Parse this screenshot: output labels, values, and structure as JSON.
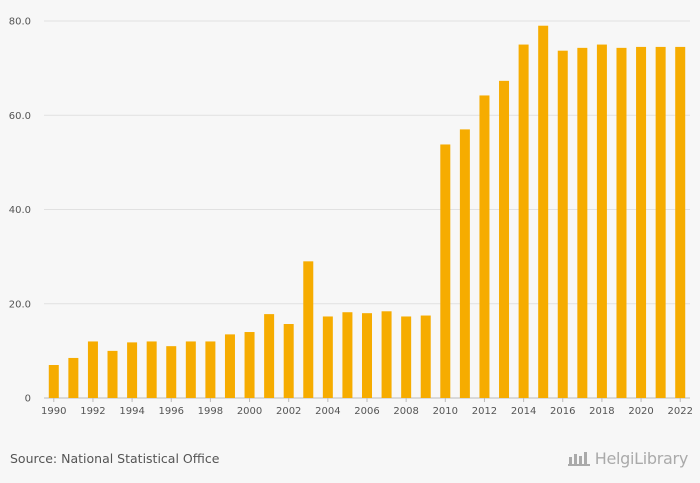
{
  "chart_data": {
    "type": "bar",
    "categories": [
      "1990",
      "1991",
      "1992",
      "1993",
      "1994",
      "1995",
      "1996",
      "1997",
      "1998",
      "1999",
      "2000",
      "2001",
      "2002",
      "2003",
      "2004",
      "2005",
      "2006",
      "2007",
      "2008",
      "2009",
      "2010",
      "2011",
      "2012",
      "2013",
      "2014",
      "2015",
      "2016",
      "2017",
      "2018",
      "2019",
      "2020",
      "2021",
      "2022"
    ],
    "values": [
      7.0,
      8.5,
      12.0,
      10.0,
      11.8,
      12.0,
      11.0,
      12.0,
      12.0,
      13.5,
      14.0,
      17.8,
      15.7,
      29.0,
      17.3,
      18.2,
      18.0,
      18.4,
      17.3,
      17.5,
      53.8,
      57.0,
      64.2,
      67.3,
      75.0,
      79.0,
      73.7,
      74.3,
      75.0,
      74.3,
      74.5,
      74.5,
      74.5
    ],
    "x_tick_labels": [
      "1990",
      "1992",
      "1994",
      "1996",
      "1998",
      "2000",
      "2002",
      "2004",
      "2006",
      "2008",
      "2010",
      "2012",
      "2014",
      "2016",
      "2018",
      "2020",
      "2022"
    ],
    "y_tick_labels": [
      "0",
      "20.0",
      "40.0",
      "60.0",
      "80.0"
    ],
    "y_ticks": [
      0,
      20,
      40,
      60,
      80
    ],
    "ylim": [
      0,
      80
    ],
    "grid": true,
    "bar_color": "#f6ac00",
    "title": "",
    "xlabel": "",
    "ylabel": ""
  },
  "footer": {
    "source": "Source: National Statistical Office",
    "brand": "HelgiLibrary"
  }
}
